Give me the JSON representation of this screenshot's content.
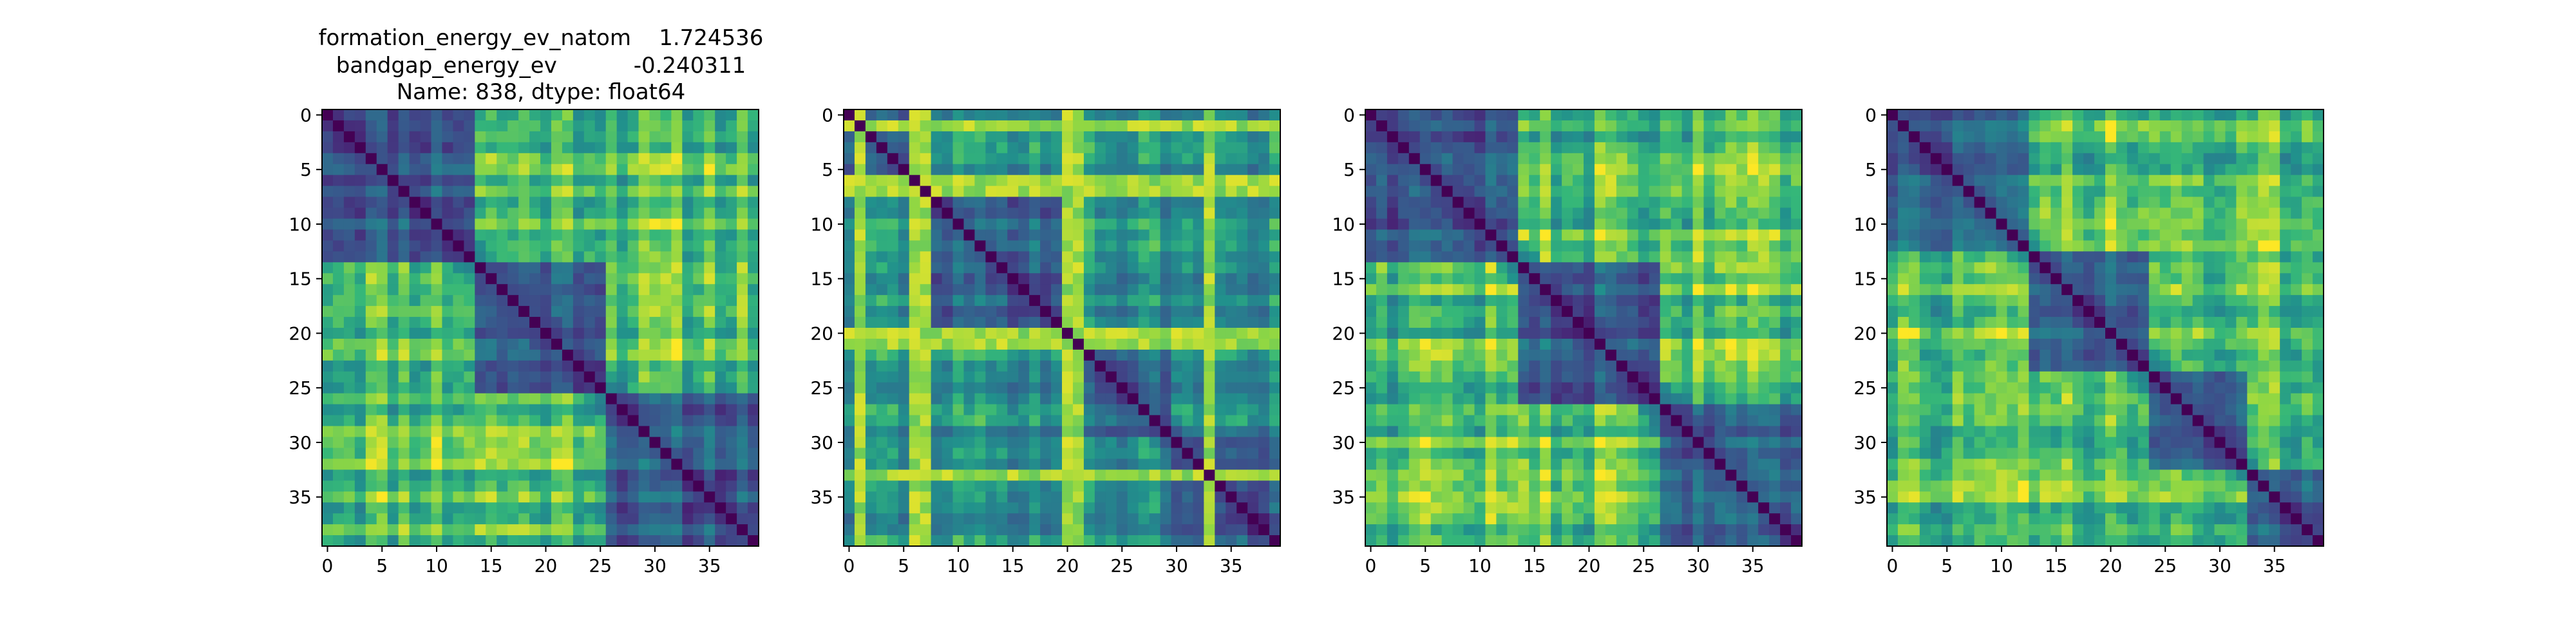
{
  "figure": {
    "title_lines": [
      "formation_energy_ev_natom    1.724536",
      "bandgap_energy_ev           -0.240311",
      "Name: 838, dtype: float64"
    ]
  },
  "chart_data": [
    {
      "type": "heatmap",
      "size": 40,
      "colormap": "viridis",
      "value_range": [
        0,
        1
      ],
      "xticks": [
        0,
        5,
        10,
        15,
        20,
        25,
        30,
        35
      ],
      "yticks": [
        0,
        5,
        10,
        15,
        20,
        25,
        30,
        35
      ],
      "block_boundaries": [
        14,
        26
      ],
      "off_block_level": 0.8,
      "values_within_block": 0.38,
      "hot_rows": [],
      "note_seed": 11
    },
    {
      "type": "heatmap",
      "size": 40,
      "colormap": "viridis",
      "value_range": [
        0,
        1
      ],
      "xticks": [
        0,
        5,
        10,
        15,
        20,
        25,
        30,
        35
      ],
      "yticks": [
        0,
        5,
        10,
        15,
        20,
        25,
        30,
        35
      ],
      "block_boundaries": [
        6,
        20,
        30
      ],
      "off_block_level": 0.62,
      "values_within_block": 0.42,
      "hot_rows": [
        1,
        6,
        7,
        20,
        21,
        33
      ],
      "note_seed": 29
    },
    {
      "type": "heatmap",
      "size": 40,
      "colormap": "viridis",
      "value_range": [
        0,
        1
      ],
      "xticks": [
        0,
        5,
        10,
        15,
        20,
        25,
        30,
        35
      ],
      "yticks": [
        0,
        5,
        10,
        15,
        20,
        25,
        30,
        35
      ],
      "block_boundaries": [
        14,
        27
      ],
      "off_block_level": 0.78,
      "values_within_block": 0.36,
      "hot_rows": [],
      "note_seed": 47
    },
    {
      "type": "heatmap",
      "size": 40,
      "colormap": "viridis",
      "value_range": [
        0,
        1
      ],
      "xticks": [
        0,
        5,
        10,
        15,
        20,
        25,
        30,
        35
      ],
      "yticks": [
        0,
        5,
        10,
        15,
        20,
        25,
        30,
        35
      ],
      "block_boundaries": [
        13,
        24,
        33
      ],
      "off_block_level": 0.76,
      "values_within_block": 0.38,
      "hot_rows": [],
      "note_seed": 73
    }
  ]
}
